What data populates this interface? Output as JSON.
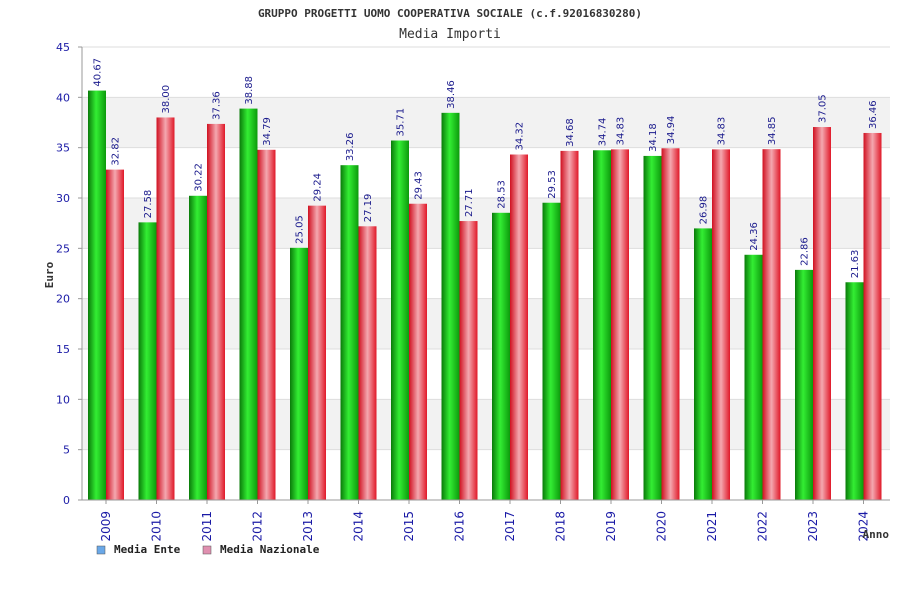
{
  "chart_data": {
    "type": "bar",
    "title": "GRUPPO PROGETTI UOMO COOPERATIVA SOCIALE (c.f.92016830280)",
    "subtitle": "Media Importi",
    "xlabel": "Anno",
    "ylabel": "Euro",
    "ylim": [
      0,
      45
    ],
    "yticks": [
      0,
      5,
      10,
      15,
      20,
      25,
      30,
      35,
      40,
      45
    ],
    "grid": true,
    "legend_position": "bottom-left",
    "categories": [
      "2009",
      "2010",
      "2011",
      "2012",
      "2013",
      "2014",
      "2015",
      "2016",
      "2017",
      "2018",
      "2019",
      "2020",
      "2021",
      "2022",
      "2023",
      "2024"
    ],
    "series": [
      {
        "name": "Media Ente",
        "legend_color": "#6aa8e8",
        "color": "#14c814",
        "values": [
          40.67,
          27.58,
          30.22,
          38.88,
          25.05,
          33.26,
          35.71,
          38.46,
          28.53,
          29.53,
          34.74,
          34.18,
          26.98,
          24.36,
          22.86,
          21.63
        ],
        "labels": [
          "40.67",
          "27.58",
          "30.22",
          "38.88",
          "25.05",
          "33.26",
          "35.71",
          "38.46",
          "28.53",
          "29.53",
          "34.74",
          "34.18",
          "26.98",
          "24.36",
          "22.86",
          "21.63"
        ]
      },
      {
        "name": "Media Nazionale",
        "legend_color": "#e090b0",
        "color": "#e83040",
        "values": [
          32.82,
          38.0,
          37.36,
          34.79,
          29.24,
          27.19,
          29.43,
          27.71,
          34.32,
          34.68,
          34.83,
          34.94,
          34.83,
          34.85,
          37.05,
          36.46
        ],
        "labels": [
          "32.82",
          "38.00",
          "37.36",
          "34.79",
          "29.24",
          "27.19",
          "29.43",
          "27.71",
          "34.32",
          "34.68",
          "34.83",
          "34.94",
          "34.83",
          "34.85",
          "37.05",
          "36.46"
        ]
      }
    ]
  }
}
